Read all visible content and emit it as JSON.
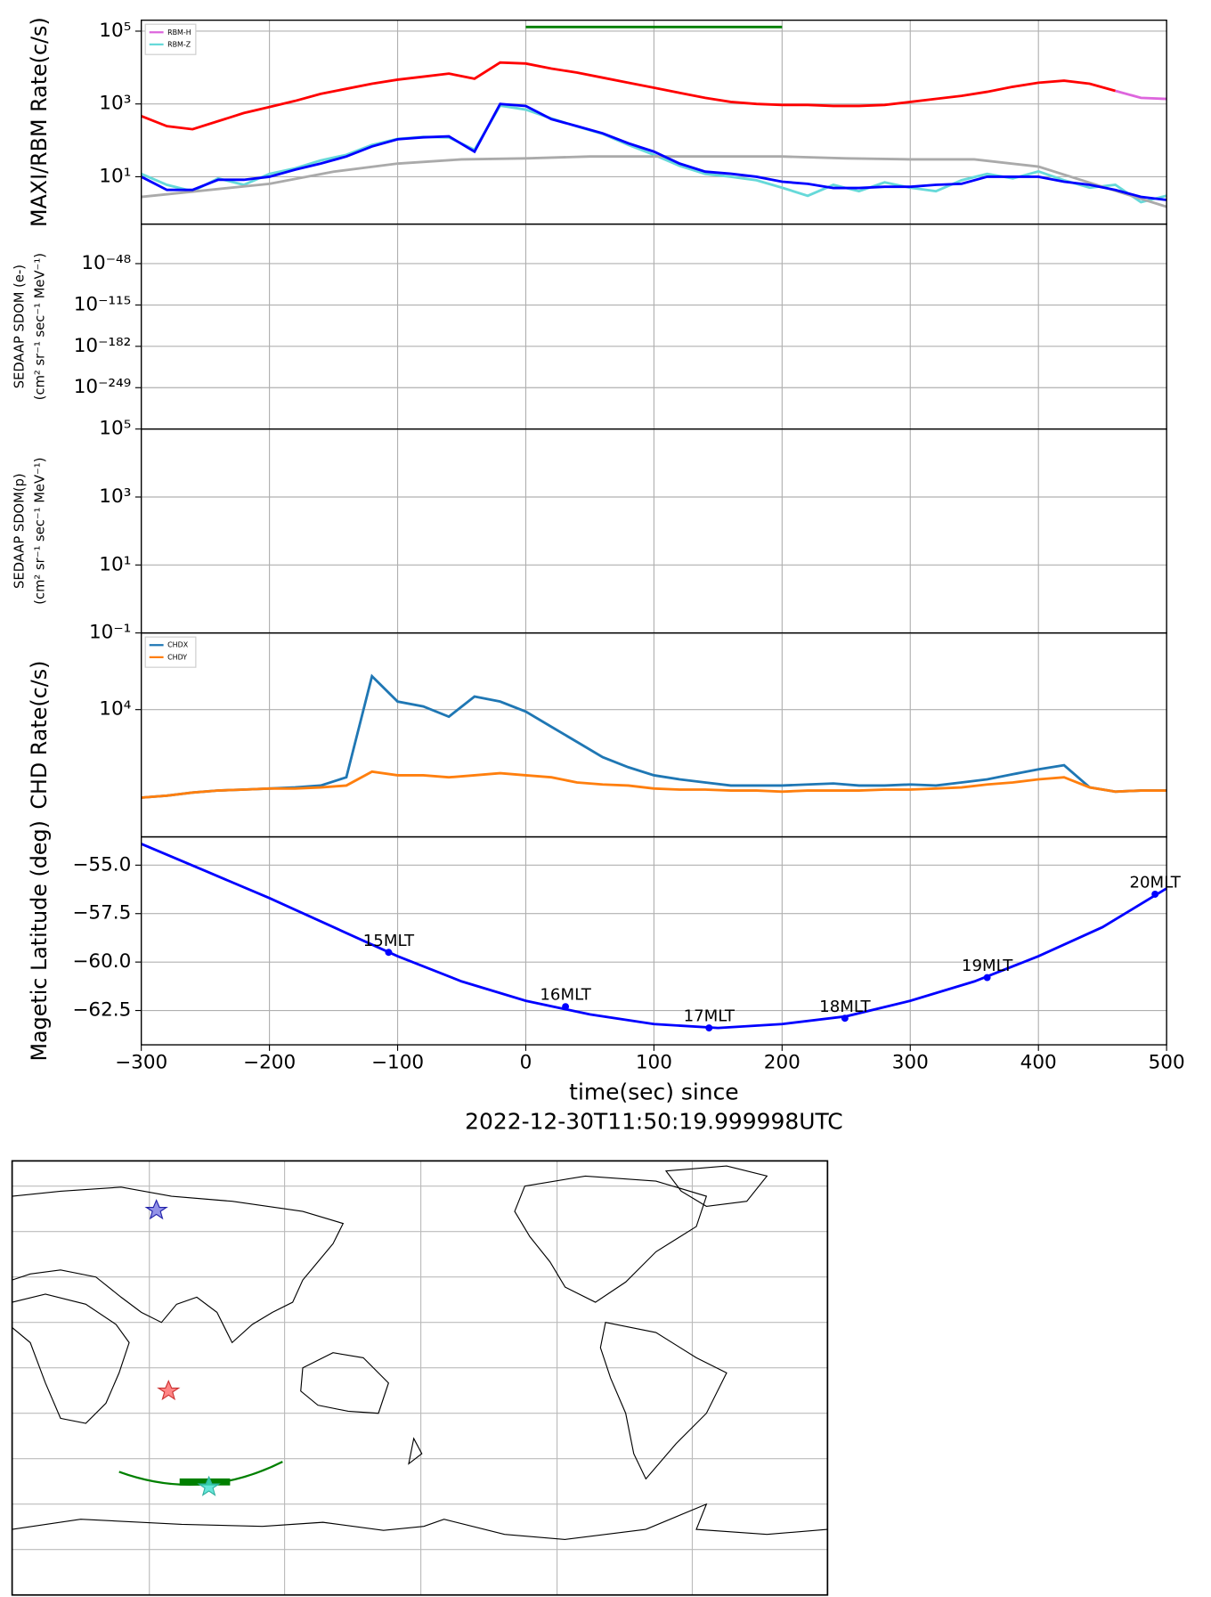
{
  "chart_data": [
    {
      "type": "line",
      "ylabel": "MAXI/RBM Rate(c/s)",
      "yscale": "log",
      "grid": true,
      "ylim": [
        0.5,
        200000
      ],
      "yticks": [
        {
          "value": 10,
          "label": "10¹"
        },
        {
          "value": 1000,
          "label": "10³"
        },
        {
          "value": 100000,
          "label": "10⁵"
        }
      ],
      "legend": "upper left",
      "x": [
        -300,
        -280,
        -260,
        -240,
        -220,
        -200,
        -180,
        -160,
        -140,
        -120,
        -100,
        -80,
        -60,
        -40,
        -20,
        0,
        20,
        40,
        60,
        80,
        100,
        120,
        140,
        160,
        180,
        200,
        220,
        240,
        260,
        280,
        300,
        320,
        340,
        360,
        380,
        400,
        420,
        440,
        460,
        480,
        500
      ],
      "series": [
        {
          "name": "RBM-H",
          "color": "#dd66dd",
          "x": [
            460,
            480,
            500
          ],
          "values": [
            2297,
            1468,
            1377
          ]
        },
        {
          "name": "RBM-Z",
          "color": "#66d9d9",
          "values": [
            12,
            6,
            4,
            9,
            6,
            12,
            17,
            28,
            40,
            75,
            110,
            125,
            120,
            55,
            900,
            700,
            400,
            240,
            150,
            75,
            40,
            20,
            12,
            10,
            8,
            5,
            3,
            6,
            4,
            7,
            5,
            4,
            8,
            12,
            9,
            14,
            8,
            5,
            6,
            2,
            3
          ]
        },
        {
          "color": "#aaaaaa",
          "x": [
            -300,
            -200,
            -150,
            -100,
            -50,
            0,
            50,
            100,
            150,
            200,
            250,
            300,
            350,
            400,
            450,
            500
          ],
          "values": [
            2.8,
            6.4,
            13.8,
            23,
            30,
            32,
            36,
            36,
            36,
            36,
            32,
            30,
            30,
            19,
            5.3,
            1.5
          ]
        },
        {
          "color": "#ff0000",
          "values": [
            464,
            245,
            202,
            337,
            562,
            826,
            1211,
            1897,
            2610,
            3594,
            4642,
            5623,
            6813,
            4943,
            13760,
            12915,
            9380,
            7260,
            5275,
            3830,
            2783,
            2022,
            1468,
            1136,
            1000,
            938,
            938,
            880,
            880,
            938,
            1136,
            1377,
            1668,
            2154,
            2966,
            3830,
            4352,
            3594,
            2297,
            null,
            null
          ]
        },
        {
          "color": "#0000ff",
          "values": [
            10,
            4.35,
            4.35,
            8.25,
            8.25,
            10,
            15.6,
            23,
            36,
            68,
            107,
            121,
            129,
            49,
            1000,
            880,
            383,
            245,
            156,
            83,
            49,
            23,
            13.8,
            12.1,
            10,
            7.3,
            6.4,
            4.9,
            4.9,
            5.3,
            5.3,
            6,
            6.4,
            10,
            10,
            10,
            7.3,
            6,
            4.35,
            2.8,
            2.3
          ]
        },
        {
          "color": "#008000",
          "x": [
            0,
            200
          ],
          "values": [
            130000,
            130000
          ]
        }
      ]
    },
    {
      "type": "line",
      "ylabel": [
        "SEDAAP SDOM (e-)",
        "(cm² sr⁻¹ sec⁻¹ MeV⁻¹)"
      ],
      "yscale": "log",
      "grid": true,
      "ylim": [
        1e-316,
        1e+16
      ],
      "yticks": [
        {
          "value": 1e-249,
          "label": "10⁻²⁴⁹"
        },
        {
          "value": 1e-182,
          "label": "10⁻¹⁸²"
        },
        {
          "value": 1e-115,
          "label": "10⁻¹¹⁵"
        },
        {
          "value": 1e-48,
          "label": "10⁻⁴⁸"
        }
      ]
    },
    {
      "type": "line",
      "ylabel": [
        "SEDAAP SDOM(p)",
        "(cm² sr⁻¹ sec⁻¹ MeV⁻¹)"
      ],
      "yscale": "log",
      "grid": true,
      "ylim": [
        0.1,
        100000
      ],
      "yticks": [
        {
          "value": 0.1,
          "label": "10⁻¹"
        },
        {
          "value": 10,
          "label": "10¹"
        },
        {
          "value": 1000,
          "label": "10³"
        },
        {
          "value": 100000,
          "label": "10⁵"
        }
      ]
    },
    {
      "type": "line",
      "ylabel": "CHD Rate(c/s)",
      "yscale": "log",
      "grid": true,
      "ylim": [
        1450,
        32000
      ],
      "yticks": [
        {
          "value": 10000,
          "label": "10⁴"
        }
      ],
      "legend": "upper left",
      "x": [
        -300,
        -280,
        -260,
        -240,
        -220,
        -200,
        -180,
        -160,
        -140,
        -120,
        -100,
        -80,
        -60,
        -40,
        -20,
        0,
        20,
        40,
        60,
        80,
        100,
        120,
        140,
        160,
        180,
        200,
        220,
        240,
        260,
        280,
        300,
        320,
        340,
        360,
        380,
        400,
        420,
        440,
        460,
        480,
        500
      ],
      "series": [
        {
          "name": "CHDX",
          "color": "#1f77b4",
          "values": [
            2630,
            2710,
            2840,
            2930,
            2970,
            3020,
            3070,
            3160,
            3580,
            16600,
            11300,
            10500,
            8980,
            12200,
            11300,
            9700,
            7700,
            6120,
            4860,
            4170,
            3690,
            3470,
            3310,
            3160,
            3160,
            3160,
            3210,
            3260,
            3160,
            3160,
            3210,
            3160,
            3310,
            3470,
            3750,
            4040,
            4300,
            3070,
            2880,
            2930,
            2930
          ]
        },
        {
          "name": "CHDY",
          "color": "#ff7f0e",
          "values": [
            2630,
            2710,
            2840,
            2930,
            2970,
            3020,
            3020,
            3070,
            3160,
            3900,
            3690,
            3690,
            3580,
            3690,
            3810,
            3690,
            3580,
            3310,
            3210,
            3160,
            3020,
            2970,
            2970,
            2930,
            2930,
            2880,
            2930,
            2930,
            2930,
            2970,
            2970,
            3020,
            3070,
            3210,
            3310,
            3470,
            3580,
            3070,
            2880,
            2930,
            2930
          ]
        }
      ]
    },
    {
      "type": "line",
      "ylabel": "Magetic Latitude  (deg)",
      "grid": true,
      "ylim": [
        -64.27,
        -53.54
      ],
      "yticks": [
        {
          "value": -62.5,
          "label": "−62.5"
        },
        {
          "value": -60,
          "label": "−60.0"
        },
        {
          "value": -57.5,
          "label": "−57.5"
        },
        {
          "value": -55,
          "label": "−55.0"
        }
      ],
      "xlim": [
        -300,
        500
      ],
      "xticks": [
        {
          "value": -300,
          "label": "−300"
        },
        {
          "value": -200,
          "label": "−200"
        },
        {
          "value": -100,
          "label": "−100"
        },
        0,
        100,
        200,
        300,
        400,
        500
      ],
      "xlabel": [
        "time(sec) since",
        "2022-12-30T11:50:19.999998UTC"
      ],
      "x": [
        -300,
        -250,
        -200,
        -150,
        -100,
        -50,
        0,
        50,
        100,
        150,
        200,
        250,
        300,
        350,
        400,
        450,
        500
      ],
      "series": [
        {
          "color": "#0000ff",
          "values": [
            -53.9,
            -55.3,
            -56.7,
            -58.2,
            -59.7,
            -61.0,
            -62.0,
            -62.7,
            -63.2,
            -63.4,
            -63.2,
            -62.8,
            -62.0,
            -61.0,
            -59.7,
            -58.2,
            -56.2
          ]
        }
      ],
      "annotations": [
        {
          "x": -107,
          "y": -59.5,
          "text": "15MLT"
        },
        {
          "x": 31,
          "y": -62.3,
          "text": "16MLT"
        },
        {
          "x": 143,
          "y": -63.4,
          "text": "17MLT"
        },
        {
          "x": 249,
          "y": -62.9,
          "text": "18MLT"
        },
        {
          "x": 360,
          "y": -60.8,
          "text": "19MLT"
        },
        {
          "x": 491,
          "y": -56.5,
          "text": "20MLT"
        }
      ]
    }
  ]
}
